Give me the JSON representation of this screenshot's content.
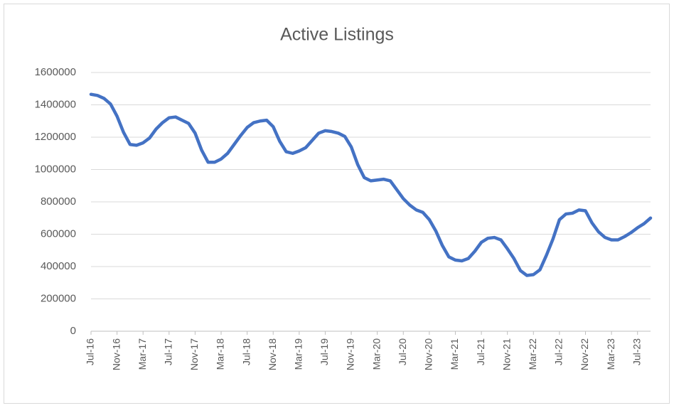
{
  "chart_data": {
    "type": "line",
    "title": "Active Listings",
    "categories": [
      "Jul-16",
      null,
      null,
      null,
      "Nov-16",
      null,
      null,
      null,
      "Mar-17",
      null,
      null,
      null,
      "Jul-17",
      null,
      null,
      null,
      "Nov-17",
      null,
      null,
      null,
      "Mar-18",
      null,
      null,
      null,
      "Jul-18",
      null,
      null,
      null,
      "Nov-18",
      null,
      null,
      null,
      "Mar-19",
      null,
      null,
      null,
      "Jul-19",
      null,
      null,
      null,
      "Nov-19",
      null,
      null,
      null,
      "Mar-20",
      null,
      null,
      null,
      "Jul-20",
      null,
      null,
      null,
      "Nov-20",
      null,
      null,
      null,
      "Mar-21",
      null,
      null,
      null,
      "Jul-21",
      null,
      null,
      null,
      "Nov-21",
      null,
      null,
      null,
      "Mar-22",
      null,
      null,
      null,
      "Jul-22",
      null,
      null,
      null,
      "Nov-22",
      null,
      null,
      null,
      "Mar-23",
      null,
      null,
      null,
      "Jul-23",
      null,
      null
    ],
    "values": [
      1465000,
      1458000,
      1440000,
      1405000,
      1330000,
      1230000,
      1155000,
      1150000,
      1165000,
      1195000,
      1250000,
      1290000,
      1320000,
      1325000,
      1305000,
      1285000,
      1225000,
      1120000,
      1045000,
      1045000,
      1065000,
      1100000,
      1155000,
      1210000,
      1260000,
      1290000,
      1300000,
      1305000,
      1265000,
      1175000,
      1110000,
      1100000,
      1115000,
      1135000,
      1180000,
      1225000,
      1240000,
      1235000,
      1225000,
      1205000,
      1140000,
      1030000,
      950000,
      930000,
      935000,
      940000,
      930000,
      875000,
      820000,
      780000,
      750000,
      735000,
      690000,
      620000,
      530000,
      460000,
      440000,
      435000,
      450000,
      495000,
      550000,
      575000,
      580000,
      565000,
      510000,
      450000,
      375000,
      345000,
      350000,
      380000,
      470000,
      570000,
      690000,
      725000,
      730000,
      750000,
      745000,
      670000,
      615000,
      580000,
      565000,
      565000,
      585000,
      610000,
      640000,
      665000,
      700000
    ],
    "color": "#4472c4",
    "ylim": [
      0,
      1600000
    ],
    "yticks": [
      0,
      200000,
      400000,
      600000,
      800000,
      1000000,
      1200000,
      1400000,
      1600000
    ],
    "grid": true
  }
}
